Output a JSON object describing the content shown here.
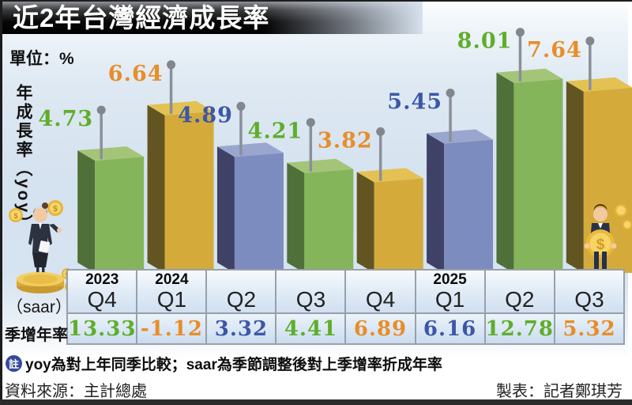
{
  "chart_data": {
    "type": "bar",
    "title": "近2年台灣經濟成長率",
    "unit_label": "單位：%",
    "ylabel": "年成長率（yoy）",
    "categories": [
      "2023 Q4",
      "2024 Q1",
      "2024 Q2",
      "2024 Q3",
      "2024 Q4",
      "2025 Q1",
      "2025 Q2",
      "2025 Q3"
    ],
    "series": [
      {
        "name": "年成長率（yoy）",
        "values": [
          4.73,
          6.64,
          4.89,
          4.21,
          3.82,
          5.45,
          8.01,
          7.64
        ]
      },
      {
        "name": "季增年率（saar）",
        "values": [
          13.33,
          -1.12,
          3.32,
          4.41,
          6.89,
          6.16,
          12.78,
          5.32
        ]
      }
    ],
    "legend_position": "none",
    "grid": false,
    "ylim": [
      0,
      8.5
    ],
    "color_cycle": [
      "green",
      "gold",
      "blue"
    ]
  },
  "table": {
    "row_label_top": "（saar）",
    "row_label_bottom": "季增年率",
    "columns": [
      {
        "year": "2023",
        "quarter": "Q4"
      },
      {
        "year": "2024",
        "quarter": "Q1"
      },
      {
        "year": "",
        "quarter": "Q2"
      },
      {
        "year": "",
        "quarter": "Q3"
      },
      {
        "year": "",
        "quarter": "Q4"
      },
      {
        "year": "2025",
        "quarter": "Q1"
      },
      {
        "year": "",
        "quarter": "Q2"
      },
      {
        "year": "",
        "quarter": "Q3"
      }
    ]
  },
  "footer": {
    "note_icon": "註",
    "note_text": "yoy為對上年同季比較；saar為季節調整後對上季增率折成年率",
    "source": "資料來源：主計總處",
    "credit": "製表：記者鄭琪芳"
  },
  "colors": {
    "bars": {
      "green": {
        "front": "#85b55a",
        "side": "#50703a",
        "top": "#a4c578"
      },
      "gold": {
        "front": "#d4ab3a",
        "side": "#635522",
        "top": "#e3c253"
      },
      "blue": {
        "front": "#7d8cbf",
        "side": "#3f4266",
        "top": "#9aa6ce"
      }
    },
    "labels": {
      "green": "#5fae2a",
      "gold": "#e88d28",
      "blue": "#3c57a8"
    },
    "pin": "#8a9099",
    "table_border": "#97a0ab",
    "note_badge": "#35499b"
  }
}
